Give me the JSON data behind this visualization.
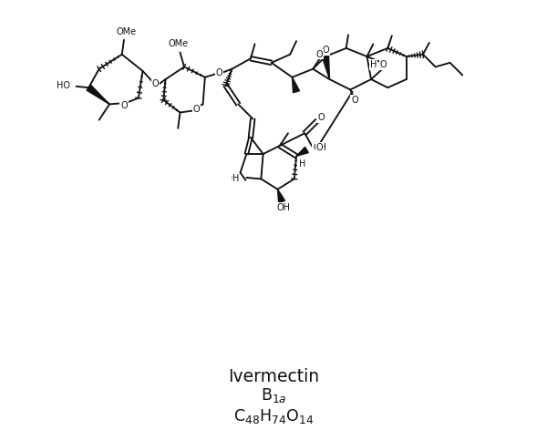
{
  "title": "Ivermectin",
  "subtitle": "B",
  "sub_script": "1a",
  "formula_C": "C",
  "formula_H": "H",
  "formula_O": "O",
  "formula_C_sub": "48",
  "formula_H_sub": "74",
  "formula_O_sub": "14",
  "bg_color": "#ffffff",
  "line_color": "#111111",
  "text_color": "#111111",
  "figsize": [
    6.0,
    4.72
  ],
  "dpi": 100,
  "lw": 1.35,
  "fs": 7.0
}
